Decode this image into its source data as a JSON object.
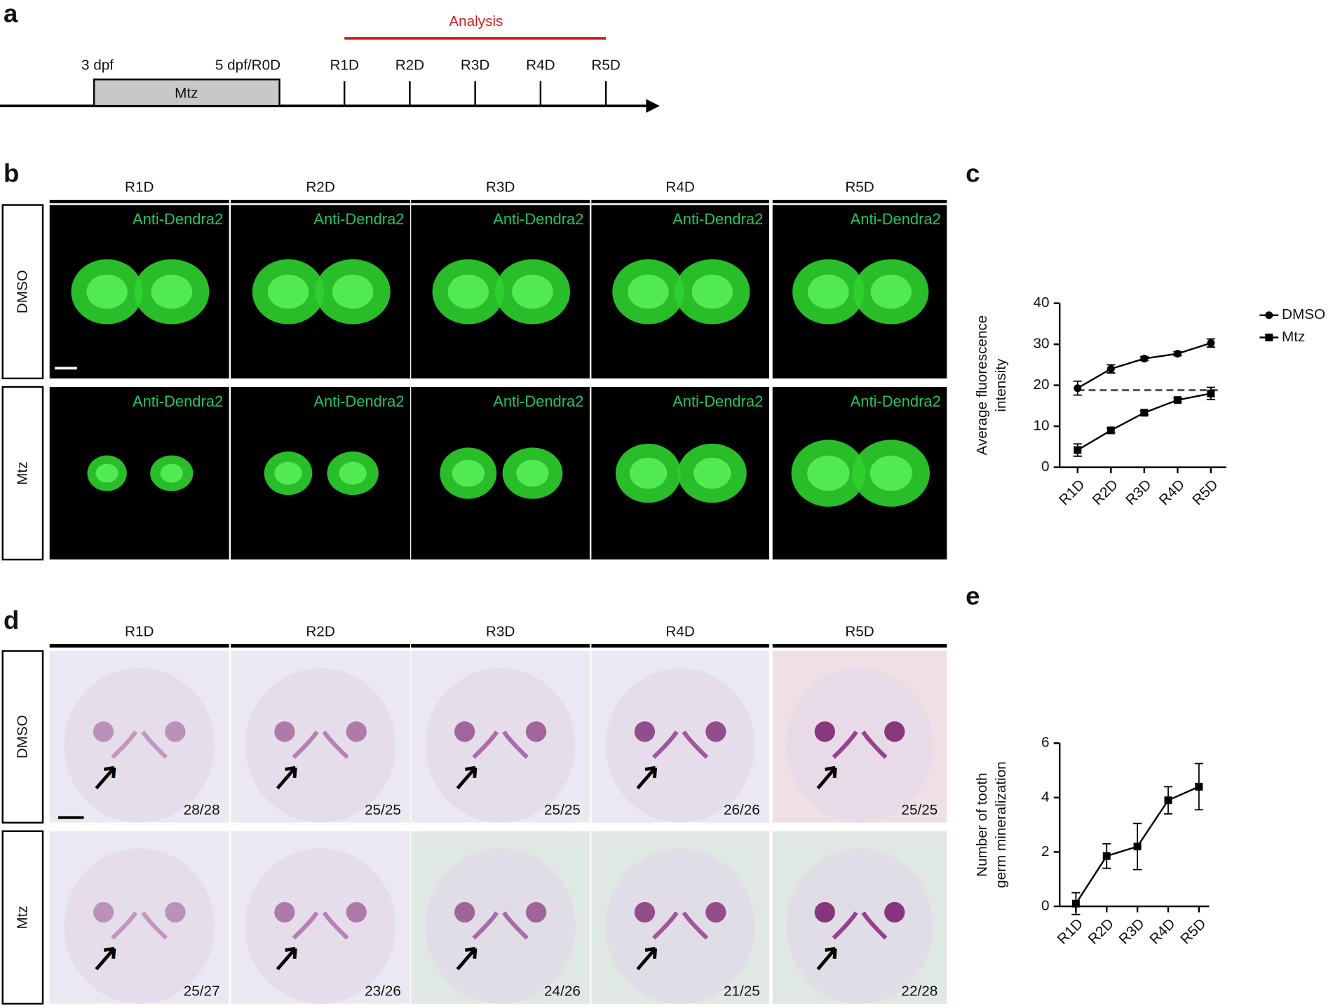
{
  "panel_letters": [
    "a",
    "b",
    "c",
    "d",
    "e"
  ],
  "timeline": {
    "analysis": "Analysis",
    "start": "3 dpf",
    "end": "5 dpf/R0D",
    "treatment": "Mtz",
    "days": [
      "R1D",
      "R2D",
      "R3D",
      "R4D",
      "R5D"
    ]
  },
  "panel_b": {
    "columns": [
      "R1D",
      "R2D",
      "R3D",
      "R4D",
      "R5D"
    ],
    "rows": [
      "DMSO",
      "Mtz"
    ],
    "stains": [
      "Anti-Dendra2",
      "Anti-Dendra2",
      "Anti-Dendra2",
      "Anti-Dendra2",
      "Anti-Dendra2",
      "Anti-Dendra2",
      "Anti-Dendra2",
      "Anti-Dendra2",
      "Anti-Dendra2",
      "Anti-Dendra2"
    ]
  },
  "panel_d": {
    "columns": [
      "R1D",
      "R2D",
      "R3D",
      "R4D",
      "R5D"
    ],
    "rows": [
      "DMSO",
      "Mtz"
    ],
    "counts": [
      "28/28",
      "25/25",
      "25/25",
      "26/26",
      "25/25",
      "25/27",
      "23/26",
      "24/26",
      "21/25",
      "22/28"
    ]
  },
  "chart_data": [
    {
      "type": "line",
      "y_label": [
        "Average fluorescence",
        "intensity"
      ],
      "categories": [
        "R1D",
        "R2D",
        "R3D",
        "R4D",
        "R5D"
      ],
      "series": [
        {
          "name": "DMSO",
          "color": "#000000",
          "marker": "circle",
          "values": [
            19.3,
            24,
            26.5,
            27.7,
            30.3
          ],
          "errors": [
            1.7,
            1,
            0.5,
            0.5,
            1
          ]
        },
        {
          "name": "Mtz",
          "color": "#000000",
          "marker": "square",
          "values": [
            4.2,
            9,
            13.3,
            16.4,
            18
          ],
          "errors": [
            1.5,
            0.5,
            0.5,
            0.5,
            1.5
          ]
        }
      ],
      "reference_line": 18.8,
      "ylim": [
        0,
        40
      ],
      "yticks": [
        0,
        10,
        20,
        30,
        40
      ]
    },
    {
      "type": "line",
      "y_label": [
        "Number of tooth",
        "germ mineralization"
      ],
      "categories": [
        "R1D",
        "R2D",
        "R3D",
        "R4D",
        "R5D"
      ],
      "values": [
        0.1,
        1.85,
        2.2,
        3.9,
        4.4
      ],
      "errors": [
        0.4,
        0.45,
        0.85,
        0.5,
        0.85
      ],
      "color": "#000000",
      "marker": "square",
      "ylim": [
        0,
        6
      ],
      "yticks": [
        0,
        2,
        4,
        6
      ]
    }
  ]
}
